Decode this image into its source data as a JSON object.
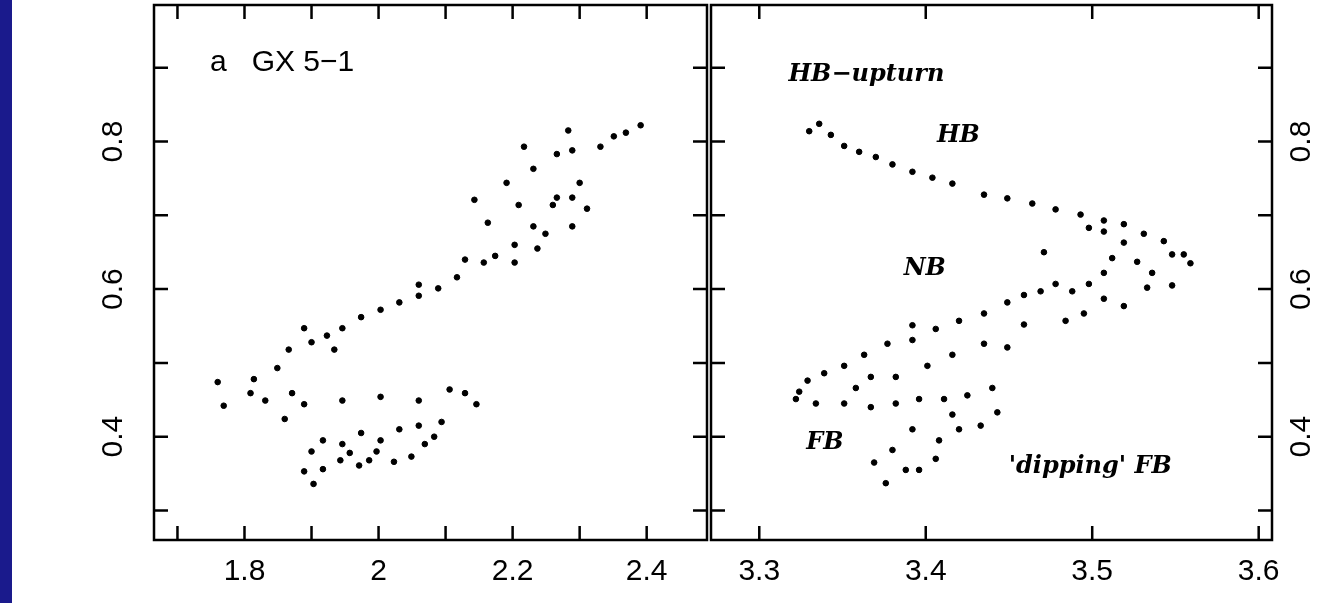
{
  "chart_data": [
    {
      "type": "scatter",
      "title": "a   GX 5−1",
      "marker": "circle",
      "color": "#000000",
      "grid": false,
      "legend": false,
      "x": [
        1.76,
        1.769,
        1.809,
        1.849,
        1.9,
        1.946,
        2.003,
        2.06,
        2.117,
        2.157,
        2.203,
        2.231,
        2.209,
        2.191,
        2.231,
        2.266,
        2.289,
        2.3,
        2.311,
        2.289,
        2.26,
        2.249,
        2.331,
        2.351,
        2.369,
        2.391,
        2.143,
        2.163,
        2.283,
        2.217,
        1.831,
        1.889,
        1.946,
        2.003,
        2.06,
        2.106,
        2.129,
        2.146,
        2.094,
        2.06,
        2.031,
        2.003,
        1.974,
        1.946,
        1.917,
        1.9,
        1.889,
        1.903,
        1.917,
        1.943,
        1.971,
        1.986,
        2.023,
        2.049,
        2.069,
        2.083,
        1.957,
        1.997,
        1.86,
        1.871,
        1.814,
        1.866,
        1.923,
        1.974,
        2.031,
        2.089,
        2.174,
        1.889,
        1.934,
        2.06,
        2.129,
        2.203,
        2.237,
        2.266,
        2.289
      ],
      "values": [
        0.474,
        0.442,
        0.459,
        0.493,
        0.528,
        0.547,
        0.572,
        0.591,
        0.616,
        0.636,
        0.66,
        0.685,
        0.714,
        0.744,
        0.763,
        0.783,
        0.788,
        0.744,
        0.709,
        0.685,
        0.714,
        0.675,
        0.793,
        0.807,
        0.812,
        0.822,
        0.721,
        0.69,
        0.815,
        0.793,
        0.449,
        0.444,
        0.449,
        0.454,
        0.449,
        0.464,
        0.459,
        0.444,
        0.42,
        0.415,
        0.41,
        0.395,
        0.405,
        0.39,
        0.395,
        0.38,
        0.353,
        0.336,
        0.356,
        0.368,
        0.361,
        0.368,
        0.366,
        0.373,
        0.39,
        0.4,
        0.378,
        0.38,
        0.424,
        0.459,
        0.478,
        0.518,
        0.537,
        0.562,
        0.582,
        0.601,
        0.645,
        0.547,
        0.518,
        0.606,
        0.64,
        0.636,
        0.655,
        0.724,
        0.724
      ],
      "xlim": [
        1.665,
        2.49
      ],
      "xticks": [
        {
          "value": 1.7,
          "label": null
        },
        1.8,
        {
          "value": 1.9,
          "label": null
        },
        2,
        {
          "value": 2.1,
          "label": null
        },
        2.2,
        {
          "value": 2.3,
          "label": null
        },
        2.4
      ],
      "ylim": [
        0.26,
        0.985
      ],
      "yticks": [
        {
          "value": 0.3,
          "label": null
        },
        0.4,
        {
          "value": 0.5,
          "label": null
        },
        0.6,
        {
          "value": 0.7,
          "label": null
        },
        0.8,
        {
          "value": 0.9,
          "label": null
        }
      ]
    },
    {
      "type": "scatter",
      "marker": "circle",
      "color": "#000000",
      "grid": false,
      "legend": false,
      "x": [
        3.33,
        3.336,
        3.343,
        3.351,
        3.36,
        3.37,
        3.38,
        3.392,
        3.404,
        3.416,
        3.435,
        3.449,
        3.464,
        3.478,
        3.493,
        3.507,
        3.519,
        3.531,
        3.543,
        3.555,
        3.559,
        3.548,
        3.536,
        3.527,
        3.519,
        3.512,
        3.507,
        3.498,
        3.488,
        3.478,
        3.469,
        3.459,
        3.449,
        3.435,
        3.42,
        3.406,
        3.392,
        3.377,
        3.363,
        3.351,
        3.339,
        3.329,
        3.324,
        3.322,
        3.334,
        3.351,
        3.367,
        3.382,
        3.396,
        3.411,
        3.425,
        3.44,
        3.443,
        3.433,
        3.42,
        3.408,
        3.406,
        3.396,
        3.388,
        3.38,
        3.369,
        3.376,
        3.392,
        3.416,
        3.507,
        3.519,
        3.495,
        3.484,
        3.459,
        3.449,
        3.435,
        3.416,
        3.401,
        3.382,
        3.367,
        3.358,
        3.392,
        3.471,
        3.548,
        3.533,
        3.507,
        3.498
      ],
      "values": [
        0.814,
        0.824,
        0.809,
        0.794,
        0.786,
        0.779,
        0.769,
        0.759,
        0.751,
        0.743,
        0.728,
        0.723,
        0.716,
        0.708,
        0.701,
        0.693,
        0.688,
        0.675,
        0.665,
        0.647,
        0.635,
        0.605,
        0.622,
        0.637,
        0.663,
        0.642,
        0.622,
        0.607,
        0.597,
        0.607,
        0.597,
        0.592,
        0.582,
        0.567,
        0.557,
        0.546,
        0.531,
        0.526,
        0.511,
        0.496,
        0.486,
        0.476,
        0.461,
        0.451,
        0.445,
        0.445,
        0.44,
        0.445,
        0.451,
        0.451,
        0.456,
        0.466,
        0.433,
        0.415,
        0.41,
        0.395,
        0.37,
        0.355,
        0.355,
        0.382,
        0.365,
        0.337,
        0.41,
        0.43,
        0.587,
        0.577,
        0.567,
        0.557,
        0.552,
        0.521,
        0.526,
        0.511,
        0.496,
        0.481,
        0.481,
        0.466,
        0.551,
        0.65,
        0.647,
        0.602,
        0.678,
        0.683
      ],
      "xlim": [
        3.271,
        3.608
      ],
      "xticks": [
        3.3,
        3.4,
        3.5,
        3.6
      ],
      "ylim": [
        0.26,
        0.985
      ],
      "yticks": [
        {
          "value": 0.3,
          "label": null
        },
        0.4,
        {
          "value": 0.5,
          "label": null
        },
        0.6,
        {
          "value": 0.7,
          "label": null
        },
        0.8,
        {
          "value": 0.9,
          "label": null
        }
      ],
      "annotations": [
        "HB−upturn",
        "HB",
        "NB",
        "FB",
        "'dipping' FB"
      ]
    }
  ]
}
